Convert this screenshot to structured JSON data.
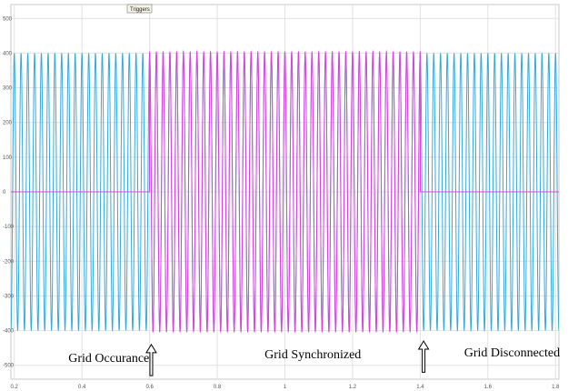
{
  "window": {
    "legend_label": "Triggers"
  },
  "chart_data": {
    "type": "line",
    "title": "",
    "xlabel": "",
    "ylabel": "",
    "xlim": [
      0.19,
      1.81
    ],
    "ylim": [
      -540,
      540
    ],
    "x_ticks": [
      "0.2",
      "0.4",
      "0.6",
      "0.8",
      "1",
      "1.2",
      "1.4",
      "1.6",
      "1.8"
    ],
    "x_tick_values": [
      0.2,
      0.4,
      0.6,
      0.8,
      1.0,
      1.2,
      1.4,
      1.6,
      1.8
    ],
    "y_ticks": [
      "500",
      "400",
      "300",
      "200",
      "100",
      "0",
      "-100",
      "-200",
      "-300",
      "-400",
      "-500"
    ],
    "y_tick_values": [
      500,
      400,
      300,
      200,
      100,
      0,
      -100,
      -200,
      -300,
      -400,
      -500
    ],
    "grid": true,
    "series": [
      {
        "color": "#33aadd",
        "description_values": {
          "waveform": "sinusoid",
          "frequency_hz": 50,
          "amplitude": 400,
          "x_range": [
            0.19,
            1.81
          ]
        }
      },
      {
        "color": "#e040e0",
        "description_values": {
          "segments": [
            {
              "x_range": [
                0.19,
                0.6
              ],
              "value": 0
            },
            {
              "x_range": [
                0.6,
                1.4
              ],
              "waveform": "sinusoid",
              "frequency_hz": 50,
              "amplitude": 405
            },
            {
              "x_range": [
                1.4,
                1.81
              ],
              "value": 0
            }
          ]
        }
      }
    ],
    "annotations": [
      {
        "text": "Grid Occurance",
        "x": 0.36,
        "y": -490
      },
      {
        "text": "Grid Synchronized",
        "x": 0.94,
        "y": -480
      },
      {
        "text": "Grid Disconnected",
        "x": 1.53,
        "y": -475
      }
    ],
    "arrows": [
      {
        "x": 0.605,
        "y_tip": -440,
        "y_tail": -530
      },
      {
        "x": 1.41,
        "y_tip": -430,
        "y_tail": -520
      }
    ]
  }
}
